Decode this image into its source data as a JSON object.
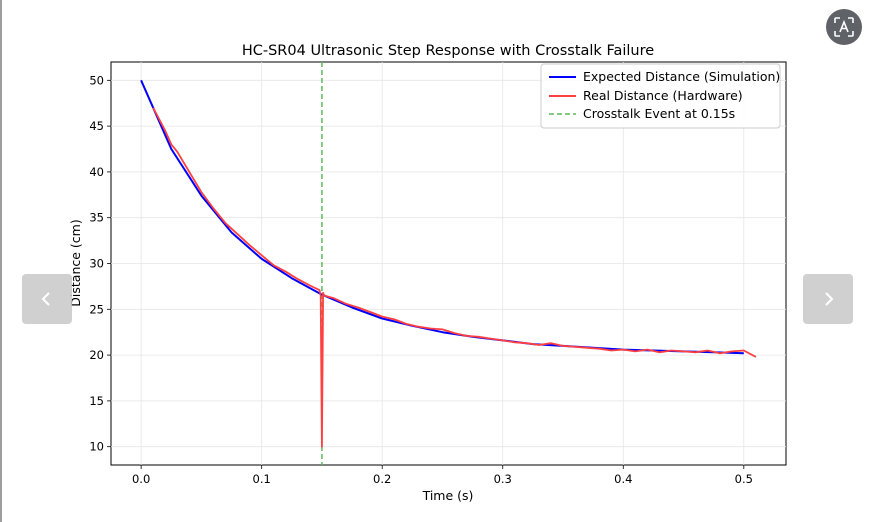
{
  "viewer": {
    "prev_icon": "chevron-left-icon",
    "next_icon": "chevron-right-icon",
    "lens_icon": "translate-lens-icon"
  },
  "chart_data": {
    "type": "line",
    "title": "HC-SR04 Ultrasonic Step Response with Crosstalk Failure",
    "xlabel": "Time (s)",
    "ylabel": "Distance (cm)",
    "xlim": [
      -0.025,
      0.535
    ],
    "ylim": [
      8,
      52
    ],
    "xticks": [
      0.0,
      0.1,
      0.2,
      0.3,
      0.4,
      0.5
    ],
    "xtick_labels": [
      "0.0",
      "0.1",
      "0.2",
      "0.3",
      "0.4",
      "0.5"
    ],
    "yticks": [
      10,
      15,
      20,
      25,
      30,
      35,
      40,
      45,
      50
    ],
    "ytick_labels": [
      "10",
      "15",
      "20",
      "25",
      "30",
      "35",
      "40",
      "45",
      "50"
    ],
    "grid": true,
    "legend_position": "top-right",
    "series": [
      {
        "name": "Expected Distance (Simulation)",
        "color": "#0000ff",
        "x": [
          0.0,
          0.025,
          0.05,
          0.075,
          0.1,
          0.125,
          0.15,
          0.175,
          0.2,
          0.225,
          0.25,
          0.275,
          0.3,
          0.325,
          0.35,
          0.375,
          0.4,
          0.425,
          0.45,
          0.475,
          0.5
        ],
        "y": [
          50.0,
          42.5,
          37.4,
          33.4,
          30.5,
          28.4,
          26.6,
          25.2,
          24.0,
          23.2,
          22.5,
          22.0,
          21.6,
          21.2,
          21.0,
          20.8,
          20.6,
          20.5,
          20.4,
          20.3,
          20.2
        ]
      },
      {
        "name": "Real Distance (Hardware)",
        "color": "#ff4040",
        "x": [
          0.01,
          0.02,
          0.025,
          0.03,
          0.04,
          0.05,
          0.06,
          0.07,
          0.08,
          0.09,
          0.1,
          0.11,
          0.12,
          0.13,
          0.14,
          0.148,
          0.149,
          0.15,
          0.151,
          0.152,
          0.16,
          0.17,
          0.18,
          0.19,
          0.2,
          0.21,
          0.22,
          0.23,
          0.24,
          0.25,
          0.26,
          0.27,
          0.28,
          0.29,
          0.3,
          0.31,
          0.32,
          0.33,
          0.34,
          0.35,
          0.36,
          0.37,
          0.38,
          0.39,
          0.4,
          0.41,
          0.42,
          0.43,
          0.44,
          0.45,
          0.46,
          0.47,
          0.48,
          0.49,
          0.5,
          0.51
        ],
        "y": [
          47.0,
          44.5,
          43.0,
          42.2,
          40.0,
          37.8,
          36.0,
          34.4,
          33.2,
          32.0,
          30.9,
          29.8,
          29.1,
          28.3,
          27.6,
          27.1,
          26.5,
          10.0,
          26.8,
          26.5,
          26.2,
          25.6,
          25.2,
          24.7,
          24.2,
          23.9,
          23.4,
          23.1,
          22.9,
          22.8,
          22.4,
          22.1,
          22.0,
          21.8,
          21.6,
          21.4,
          21.3,
          21.1,
          21.3,
          21.0,
          20.9,
          20.8,
          20.7,
          20.5,
          20.6,
          20.4,
          20.6,
          20.3,
          20.5,
          20.4,
          20.3,
          20.5,
          20.2,
          20.4,
          20.5,
          19.8
        ]
      }
    ],
    "vlines": [
      {
        "name": "Crosstalk Event at 0.15s",
        "x": 0.15,
        "color": "#5cb85c",
        "style": "dashed"
      }
    ]
  }
}
